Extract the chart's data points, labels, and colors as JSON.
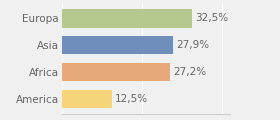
{
  "categories": [
    "Europa",
    "Asia",
    "Africa",
    "America"
  ],
  "values": [
    32.5,
    27.9,
    27.2,
    12.5
  ],
  "labels": [
    "32,5%",
    "27,9%",
    "27,2%",
    "12,5%"
  ],
  "bar_colors": [
    "#b5c98e",
    "#6f8fba",
    "#e8a97a",
    "#f5d47a"
  ],
  "background_color": "#f0f0f0",
  "xlim": [
    0,
    42
  ],
  "bar_height": 0.68,
  "label_fontsize": 7.5,
  "category_fontsize": 7.5,
  "text_color": "#666666"
}
